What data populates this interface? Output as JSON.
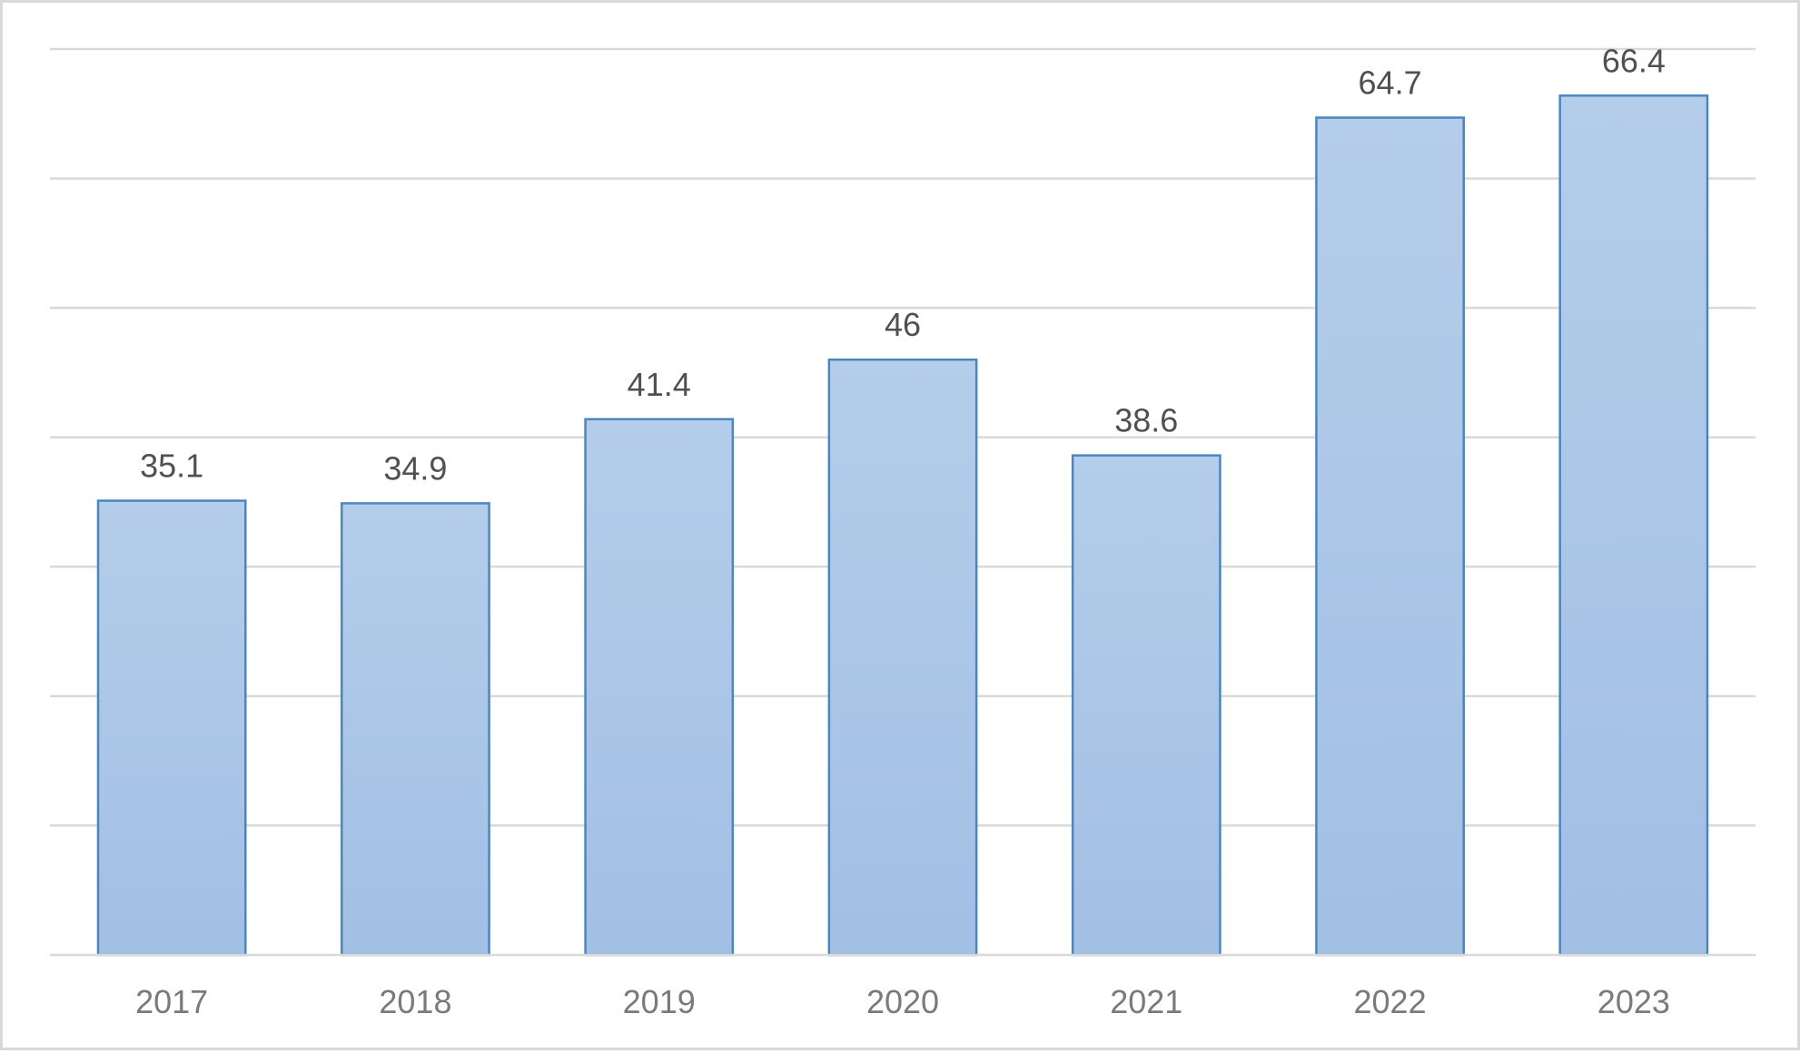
{
  "chart_data": {
    "type": "bar",
    "categories": [
      "2017",
      "2018",
      "2019",
      "2020",
      "2021",
      "2022",
      "2023"
    ],
    "values": [
      35.1,
      34.9,
      41.4,
      46,
      38.6,
      64.7,
      66.4
    ],
    "data_labels": [
      "35.1",
      "34.9",
      "41.4",
      "46",
      "38.6",
      "64.7",
      "66.4"
    ],
    "title": "",
    "xlabel": "",
    "ylabel": "",
    "ylim": [
      0,
      70
    ],
    "y_gridlines": [
      0,
      10,
      20,
      30,
      40,
      50,
      60,
      70
    ],
    "grid": true,
    "y_tick_labels_shown": false,
    "legend": "none",
    "colors": {
      "bar_fill_top": "#b4cdea",
      "bar_fill_bottom": "#a2bfe4",
      "bar_border": "#4a87c0",
      "gridline": "#d9d9d9",
      "data_label": "#505050",
      "tick_label": "#7a7a7a"
    }
  }
}
